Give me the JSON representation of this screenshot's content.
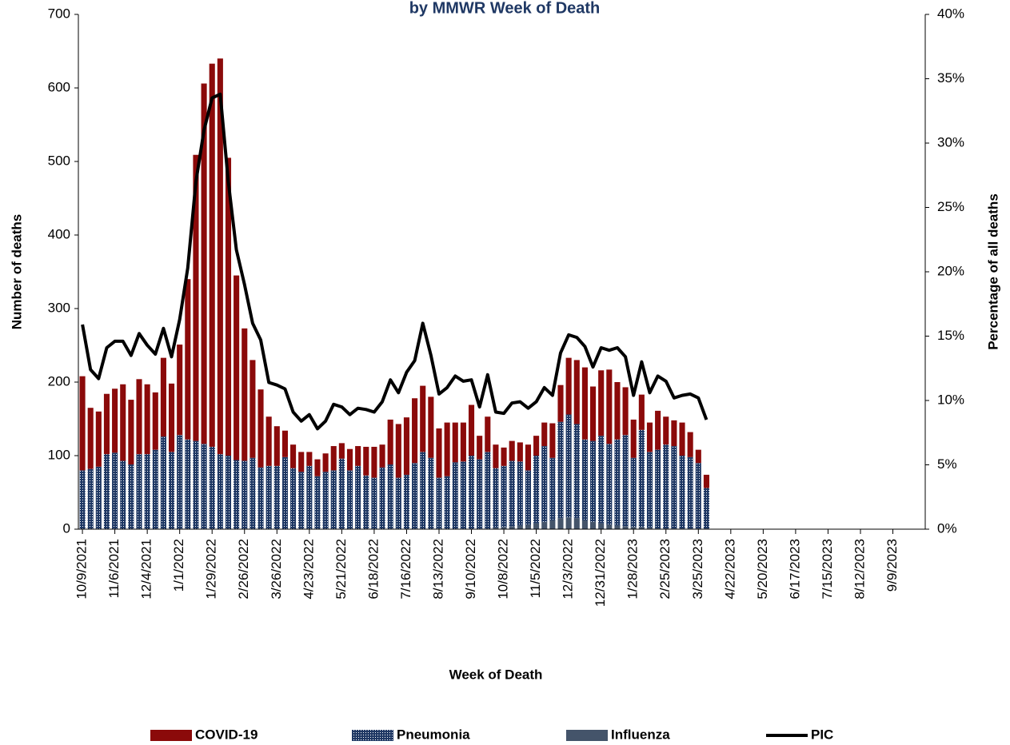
{
  "chart_data": {
    "type": "bar",
    "stacked": true,
    "title": "by MMWR Week of Death",
    "x_label": "Week of Death",
    "y_label": "Number of deaths",
    "y2_label": "Percentage of all deaths",
    "categories": [
      "10/9/2021",
      null,
      null,
      null,
      "11/6/2021",
      null,
      null,
      null,
      "12/4/2021",
      null,
      null,
      null,
      "1/1/2022",
      null,
      null,
      null,
      "1/29/2022",
      null,
      null,
      null,
      "2/26/2022",
      null,
      null,
      null,
      "3/26/2022",
      null,
      null,
      null,
      "4/23/2022",
      null,
      null,
      null,
      "5/21/2022",
      null,
      null,
      null,
      "6/18/2022",
      null,
      null,
      null,
      "7/16/2022",
      null,
      null,
      null,
      "8/13/2022",
      null,
      null,
      null,
      "9/10/2022",
      null,
      null,
      null,
      "10/8/2022",
      null,
      null,
      null,
      "11/5/2022",
      null,
      null,
      null,
      "12/3/2022",
      null,
      null,
      null,
      "12/31/2022",
      null,
      null,
      null,
      "1/28/2023",
      null,
      null,
      null,
      "2/25/2023",
      null,
      null,
      null,
      "3/25/2023",
      null,
      null,
      null,
      "4/22/2023",
      null,
      null,
      null,
      "5/20/2023",
      null,
      null,
      null,
      "6/17/2023",
      null,
      null,
      null,
      "7/15/2023",
      null,
      null,
      null,
      "8/12/2023",
      null,
      null,
      null,
      "9/9/2023",
      null,
      null,
      null
    ],
    "series": [
      {
        "name": "Influenza",
        "color": "#44546a",
        "values": [
          0,
          0,
          0,
          0,
          0,
          0,
          0,
          0,
          0,
          0,
          0,
          0,
          0,
          0,
          0,
          0,
          0,
          0,
          0,
          0,
          0,
          0,
          0,
          0,
          0,
          0,
          0,
          0,
          0,
          0,
          0,
          0,
          0,
          0,
          0,
          0,
          0,
          0,
          0,
          0,
          0,
          0,
          0,
          0,
          0,
          0,
          0,
          0,
          0,
          0,
          0,
          2,
          3,
          4,
          5,
          6,
          8,
          10,
          12,
          15,
          16,
          15,
          12,
          10,
          8,
          6,
          5,
          4,
          3,
          3,
          2,
          1,
          1,
          1,
          1,
          1,
          1,
          1,
          null,
          null,
          null,
          null,
          null,
          null,
          null,
          null,
          null,
          null,
          null,
          null,
          null,
          null,
          null,
          null,
          null,
          null,
          null,
          null,
          null,
          null,
          null,
          null,
          null,
          null
        ]
      },
      {
        "name": "Pneumonia",
        "color": "#1f3864",
        "pattern": "dots",
        "values": [
          80,
          82,
          85,
          102,
          104,
          93,
          88,
          102,
          102,
          108,
          126,
          105,
          128,
          122,
          120,
          116,
          112,
          102,
          100,
          94,
          93,
          97,
          84,
          86,
          86,
          98,
          83,
          78,
          86,
          72,
          78,
          80,
          96,
          80,
          86,
          73,
          70,
          84,
          88,
          70,
          74,
          90,
          105,
          97,
          70,
          72,
          91,
          92,
          100,
          95,
          105,
          81,
          83,
          89,
          87,
          74,
          92,
          103,
          85,
          131,
          140,
          128,
          110,
          110,
          119,
          110,
          117,
          124,
          94,
          132,
          103,
          107,
          114,
          112,
          99,
          97,
          89,
          55,
          null,
          null,
          null,
          null,
          null,
          null,
          null,
          null,
          null,
          null,
          null,
          null,
          null,
          null,
          null,
          null,
          null,
          null,
          null,
          null,
          null,
          null,
          null,
          null,
          null,
          null
        ]
      },
      {
        "name": "COVID-19",
        "color": "#8b0a0a",
        "values": [
          128,
          83,
          75,
          82,
          87,
          104,
          88,
          102,
          95,
          78,
          107,
          93,
          123,
          218,
          389,
          490,
          521,
          538,
          405,
          251,
          180,
          133,
          106,
          67,
          54,
          36,
          32,
          27,
          19,
          23,
          25,
          33,
          21,
          29,
          27,
          39,
          42,
          31,
          61,
          73,
          78,
          88,
          90,
          83,
          67,
          73,
          54,
          53,
          69,
          32,
          48,
          32,
          25,
          27,
          26,
          35,
          27,
          32,
          47,
          50,
          77,
          87,
          98,
          74,
          89,
          101,
          78,
          65,
          52,
          48,
          40,
          53,
          38,
          35,
          45,
          34,
          18,
          18,
          null,
          null,
          null,
          null,
          null,
          null,
          null,
          null,
          null,
          null,
          null,
          null,
          null,
          null,
          null,
          null,
          null,
          null,
          null,
          null,
          null,
          null,
          null,
          null,
          null,
          null
        ]
      },
      {
        "name": "PIC",
        "color": "#000000",
        "type": "line",
        "axis": "y2",
        "values": [
          15.9,
          12.4,
          11.7,
          14.1,
          14.6,
          14.6,
          13.5,
          15.2,
          14.3,
          13.6,
          15.6,
          13.4,
          16.3,
          20.3,
          27.0,
          31.0,
          33.5,
          33.8,
          27.0,
          21.7,
          19.0,
          16.0,
          14.7,
          11.4,
          11.2,
          10.9,
          9.1,
          8.4,
          8.9,
          7.8,
          8.4,
          9.7,
          9.5,
          8.9,
          9.4,
          9.3,
          9.1,
          9.9,
          11.6,
          10.6,
          12.2,
          13.1,
          16.0,
          13.5,
          10.5,
          11.0,
          11.9,
          11.5,
          11.6,
          9.5,
          12.0,
          9.1,
          9.0,
          9.8,
          9.9,
          9.4,
          9.9,
          11.0,
          10.4,
          13.7,
          15.1,
          14.9,
          14.2,
          12.6,
          14.1,
          13.9,
          14.1,
          13.4,
          10.4,
          13.0,
          10.6,
          11.9,
          11.5,
          10.2,
          10.4,
          10.5,
          10.2,
          8.5,
          null,
          null,
          null,
          null,
          null,
          null,
          null,
          null,
          null,
          null,
          null,
          null,
          null,
          null,
          null,
          null,
          null,
          null,
          null,
          null,
          null,
          null,
          null,
          null,
          null,
          null
        ]
      }
    ],
    "ylim": [
      0,
      700
    ],
    "yticks": [
      0,
      100,
      200,
      300,
      400,
      500,
      600,
      700
    ],
    "y2lim": [
      0,
      40
    ],
    "y2ticks": [
      {
        "value": 0,
        "label": "0%"
      },
      {
        "value": 5,
        "label": "5%"
      },
      {
        "value": 10,
        "label": "10%"
      },
      {
        "value": 15,
        "label": "15%"
      },
      {
        "value": 20,
        "label": "20%"
      },
      {
        "value": 25,
        "label": "25%"
      },
      {
        "value": 30,
        "label": "30%"
      },
      {
        "value": 35,
        "label": "35%"
      },
      {
        "value": 40,
        "label": "40%"
      }
    ],
    "legend": "bottom"
  }
}
